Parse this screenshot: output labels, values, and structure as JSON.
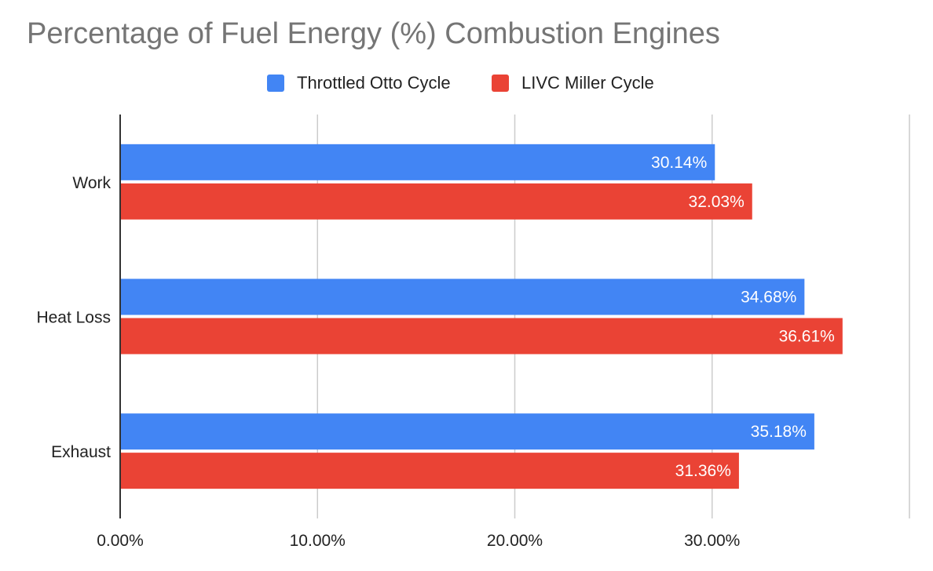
{
  "chart_data": {
    "type": "bar",
    "orientation": "horizontal",
    "title": "Percentage of Fuel Energy (%) Combustion Engines",
    "categories": [
      "Work",
      "Heat Loss",
      "Exhaust"
    ],
    "series": [
      {
        "name": "Throttled Otto Cycle",
        "color": "#4285f4",
        "values": [
          30.14,
          34.68,
          35.18
        ],
        "labels": [
          "30.14%",
          "34.68%",
          "35.18%"
        ]
      },
      {
        "name": "LIVC Miller Cycle",
        "color": "#ea4335",
        "values": [
          32.03,
          36.61,
          31.36
        ],
        "labels": [
          "32.03%",
          "36.61%",
          "31.36%"
        ]
      }
    ],
    "xlim": [
      0,
      40
    ],
    "xticks": [
      0,
      10,
      20,
      30
    ],
    "xtick_labels": [
      "0.00%",
      "10.00%",
      "20.00%",
      "30.00%"
    ],
    "grid": true,
    "legend_position": "top"
  }
}
